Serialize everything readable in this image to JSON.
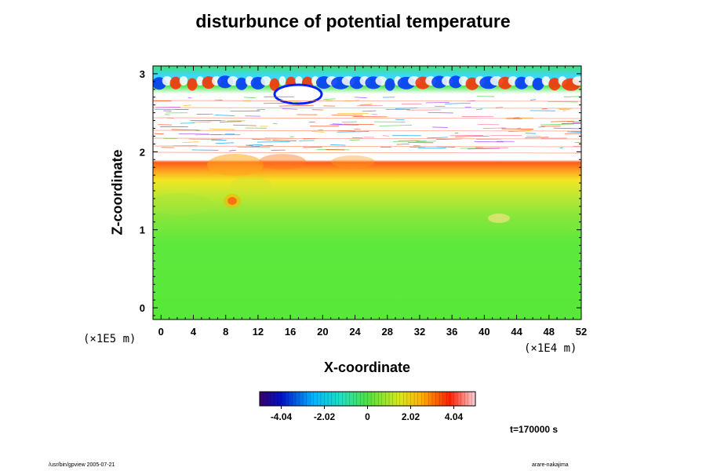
{
  "chart_data": {
    "type": "heatmap",
    "title": "disturbunce of potential temperature",
    "xlabel": "X-coordinate",
    "ylabel": "Z-coordinate",
    "x_units": "(×1E4 m)",
    "y_units": "(×1E5 m)",
    "xlim": [
      -1,
      52
    ],
    "ylim": [
      -0.15,
      3.1
    ],
    "x_ticks": [
      "0",
      "4",
      "8",
      "12",
      "16",
      "20",
      "24",
      "28",
      "32",
      "36",
      "40",
      "44",
      "48",
      "52"
    ],
    "y_ticks": [
      "0",
      "1",
      "2",
      "3"
    ],
    "colorbar": {
      "range": [
        -5.05,
        5.05
      ],
      "tick_labels": [
        "-4.04",
        "-2.02",
        "0",
        "2.02",
        "4.04"
      ],
      "tick_values": [
        -4.04,
        -2.02,
        0,
        2.02,
        4.04
      ]
    },
    "annotation_time": "t=170000 s",
    "footer_left": "/usr/bin/gpview 2005-07-21",
    "footer_right": "arare-nakajima"
  },
  "colors": {
    "background_field": "#5ee83a",
    "warm_band": "#f0e21f",
    "hot": "#ff3a00",
    "cold": "#0018ff"
  }
}
